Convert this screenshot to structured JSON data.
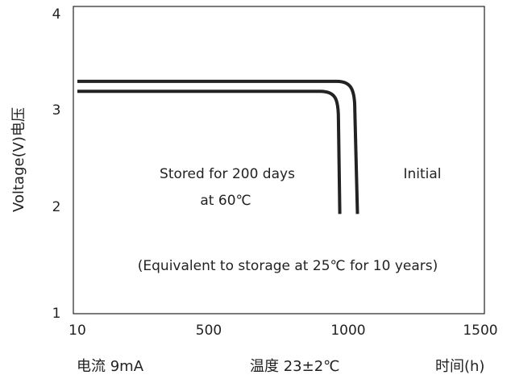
{
  "chart_data": {
    "type": "line",
    "ylabel": "Voltage(V)电压",
    "xlabel": "时间(h)",
    "xlim": [
      10,
      1500
    ],
    "ylim": [
      1,
      4
    ],
    "x_ticks": [
      "10",
      "500",
      "1000",
      "1500"
    ],
    "y_ticks": [
      "1",
      "2",
      "3",
      "4"
    ],
    "grid": false,
    "series": [
      {
        "name": "Initial",
        "points": [
          [
            10,
            3.33
          ],
          [
            960,
            3.33
          ],
          [
            1010,
            3.25
          ],
          [
            1025,
            3.05
          ],
          [
            1035,
            2.0
          ]
        ]
      },
      {
        "name": "Stored for 200 days at 60℃",
        "points": [
          [
            10,
            3.23
          ],
          [
            900,
            3.23
          ],
          [
            955,
            3.15
          ],
          [
            965,
            2.95
          ],
          [
            970,
            2.0
          ]
        ]
      }
    ],
    "annotations": {
      "initial": "Initial",
      "stored_line1": "Stored for 200 days",
      "stored_line2": "at 60℃",
      "equivalent": "(Equivalent to storage at 25℃ for 10 years)"
    },
    "footer": {
      "current": "电流  9mA",
      "temperature": "温度  23±2℃",
      "time": "时间(h)"
    }
  }
}
